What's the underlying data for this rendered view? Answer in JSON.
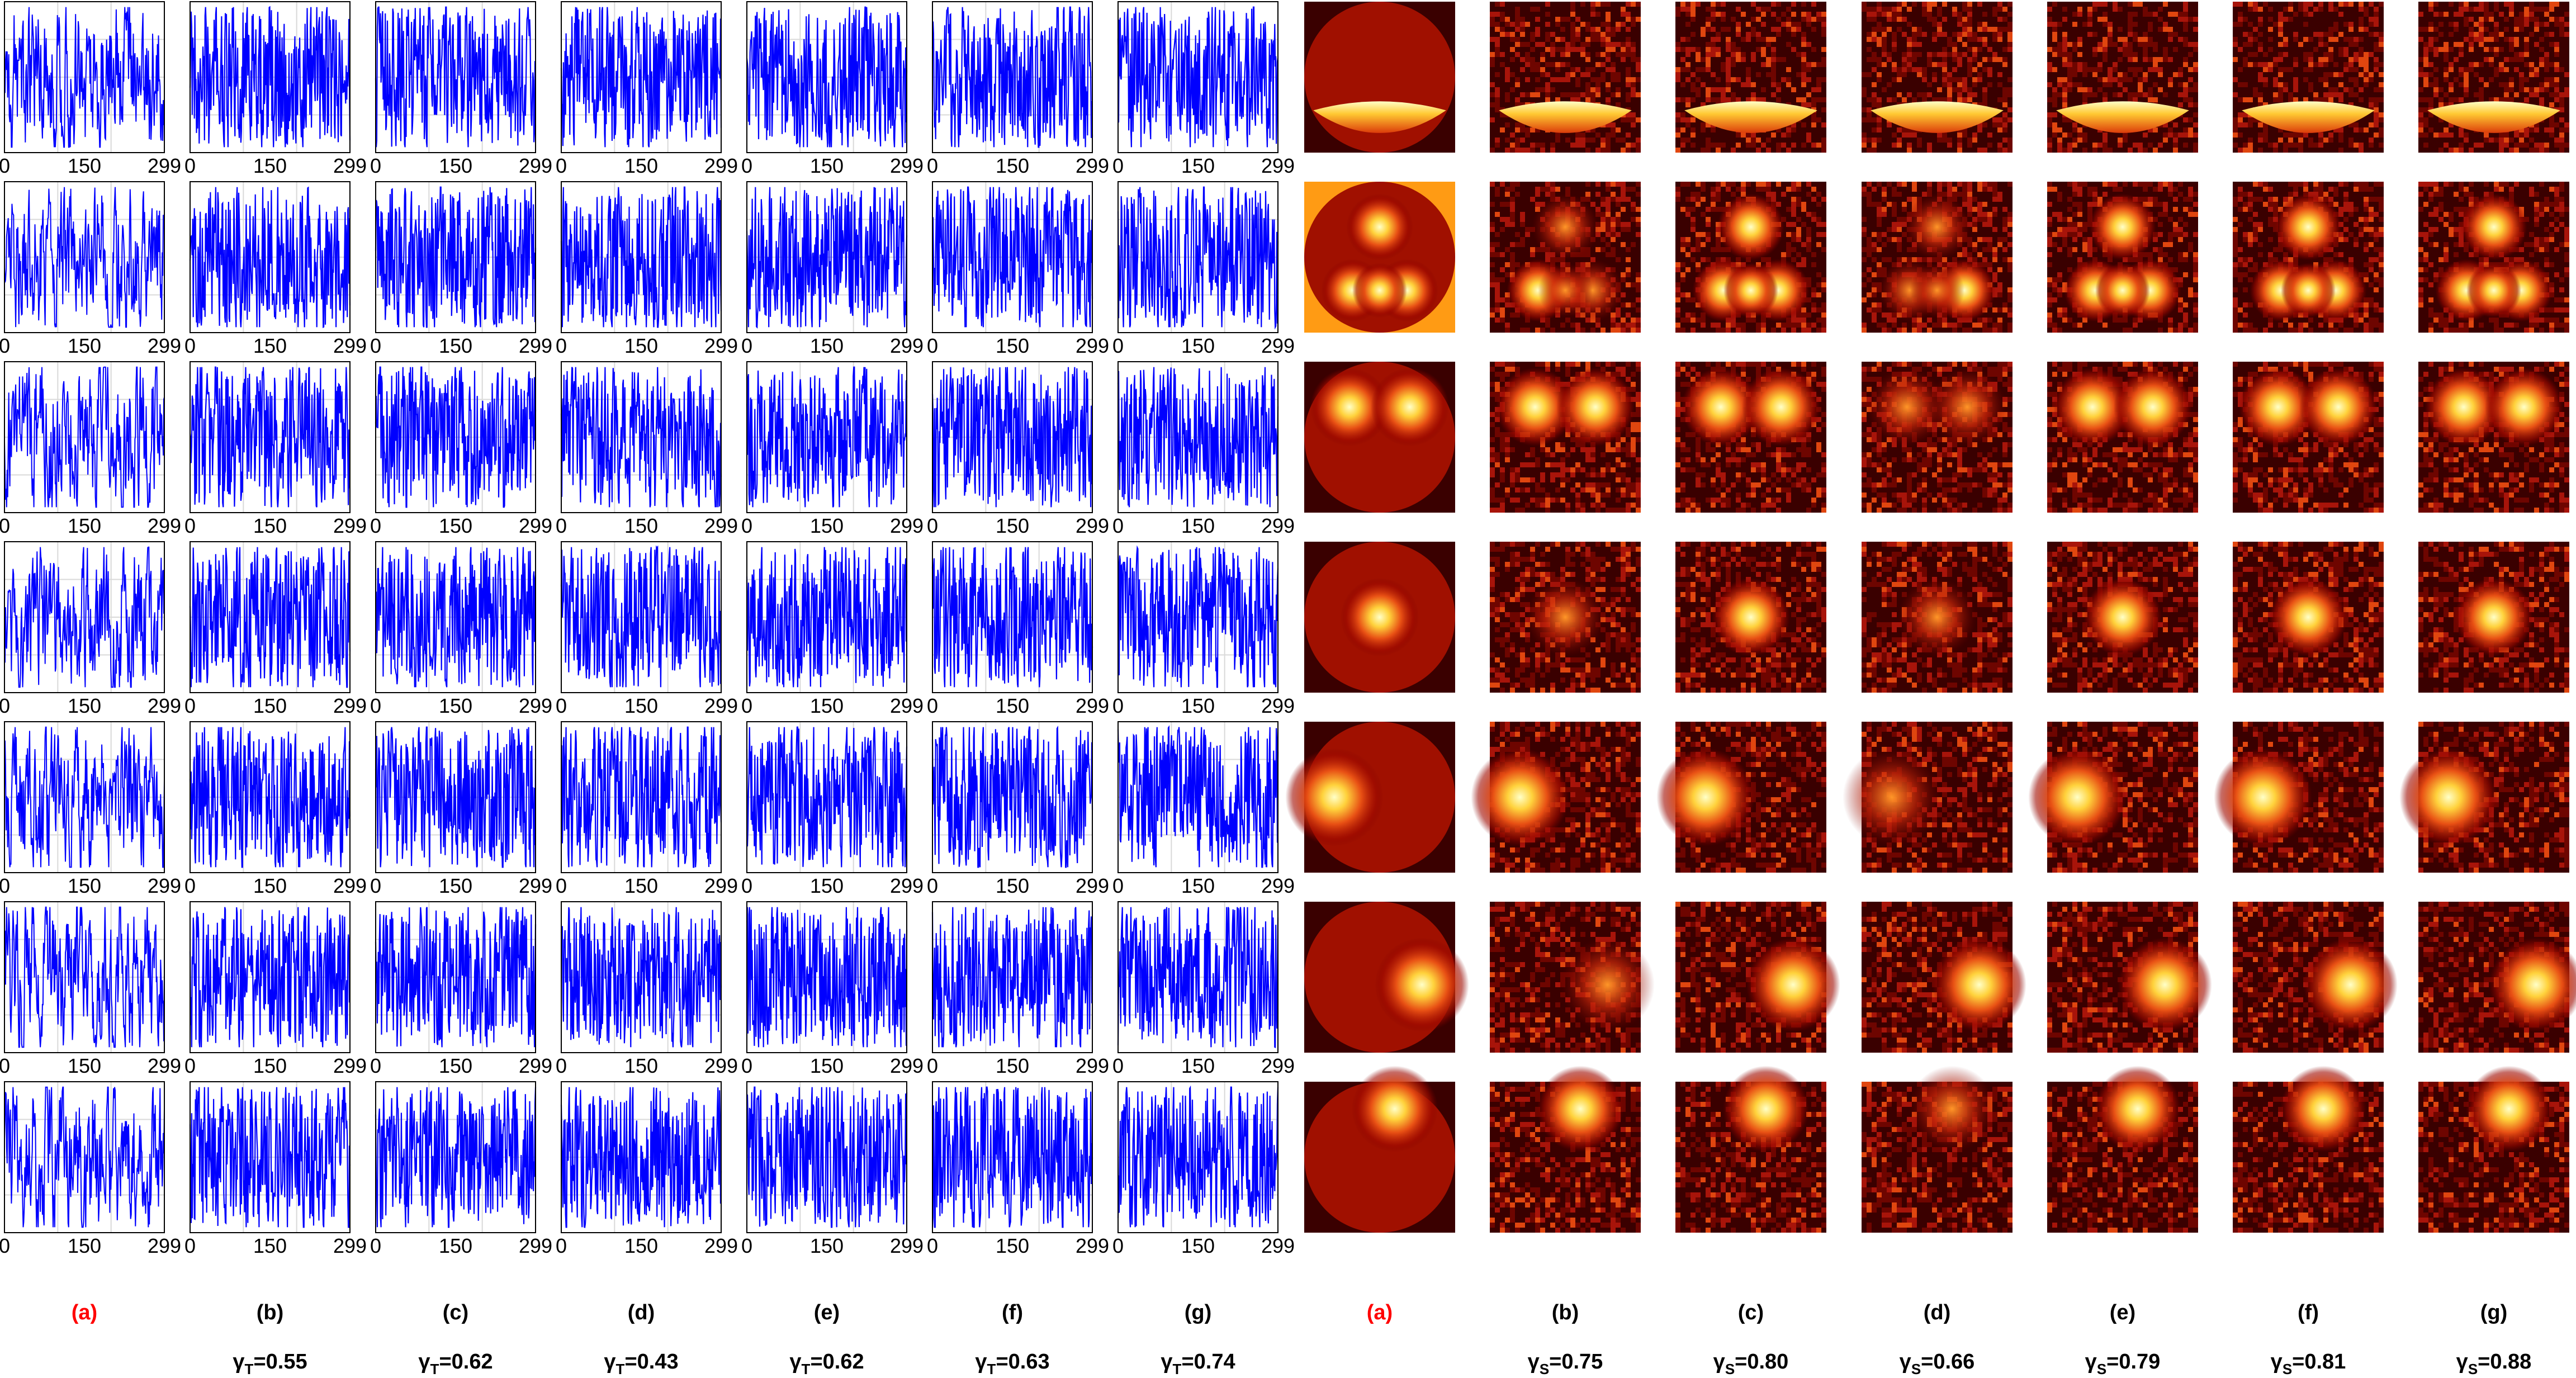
{
  "chart_data": [
    {
      "type": "line",
      "panel": "temporal-signals",
      "x_range": [
        0,
        299
      ],
      "x_tick_labels": [
        "0",
        "150",
        "299"
      ],
      "grid": true,
      "series_color": "#0000ff",
      "rows": 7,
      "columns": [
        {
          "label": "(a)",
          "metric_symbol": "γ",
          "metric_sub": "",
          "metric_value": ""
        },
        {
          "label": "(b)",
          "metric_symbol": "γ",
          "metric_sub": "T",
          "metric_value": "=0.55"
        },
        {
          "label": "(c)",
          "metric_symbol": "γ",
          "metric_sub": "T",
          "metric_value": "=0.62"
        },
        {
          "label": "(d)",
          "metric_symbol": "γ",
          "metric_sub": "T",
          "metric_value": "=0.43"
        },
        {
          "label": "(e)",
          "metric_symbol": "γ",
          "metric_sub": "T",
          "metric_value": "=0.62"
        },
        {
          "label": "(f)",
          "metric_symbol": "γ",
          "metric_sub": "T",
          "metric_value": "=0.63"
        },
        {
          "label": "(g)",
          "metric_symbol": "γ",
          "metric_sub": "T",
          "metric_value": "=0.74"
        }
      ]
    },
    {
      "type": "heatmap",
      "panel": "spatial-maps",
      "colormap": "hot",
      "rows": 7,
      "columns": [
        {
          "label": "(a)",
          "metric_symbol": "γ",
          "metric_sub": "",
          "metric_value": ""
        },
        {
          "label": "(b)",
          "metric_symbol": "γ",
          "metric_sub": "S",
          "metric_value": "=0.75"
        },
        {
          "label": "(c)",
          "metric_symbol": "γ",
          "metric_sub": "S",
          "metric_value": "=0.80"
        },
        {
          "label": "(d)",
          "metric_symbol": "γ",
          "metric_sub": "S",
          "metric_value": "=0.66"
        },
        {
          "label": "(e)",
          "metric_symbol": "γ",
          "metric_sub": "S",
          "metric_value": "=0.79"
        },
        {
          "label": "(f)",
          "metric_symbol": "γ",
          "metric_sub": "S",
          "metric_value": "=0.81"
        },
        {
          "label": "(g)",
          "metric_symbol": "γ",
          "metric_sub": "S",
          "metric_value": "=0.88"
        }
      ]
    }
  ],
  "colors": {
    "signal": "#0000ff",
    "grid": "#d9d9d9",
    "axes": "#000000",
    "highlight_label": "#ff0000",
    "map_background": "#3a0000",
    "map_mid": "#c8140a",
    "map_hot": "#ffc832",
    "map_peak": "#ffffb4"
  }
}
